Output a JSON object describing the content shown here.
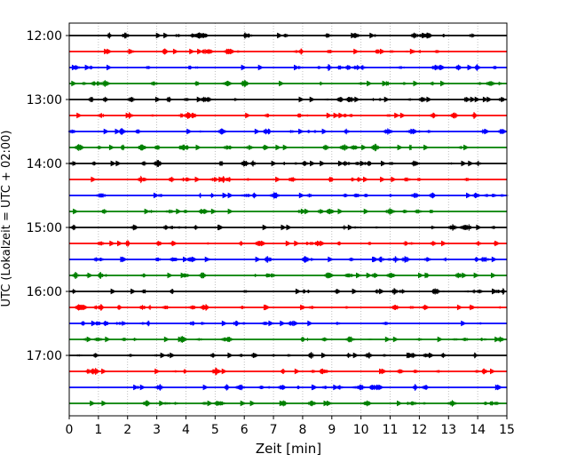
{
  "chart_data": {
    "type": "line",
    "title": "",
    "xlabel": "Zeit  [min]",
    "ylabel": "UTC (Lokalzeit = UTC + 02:00)",
    "xlim": [
      0,
      15
    ],
    "x_ticks": [
      "0",
      "1",
      "2",
      "3",
      "4",
      "5",
      "6",
      "7",
      "8",
      "9",
      "10",
      "11",
      "12",
      "13",
      "14",
      "15"
    ],
    "y_ticks": [
      {
        "label": "12:00",
        "row": 0
      },
      {
        "label": "13:00",
        "row": 4
      },
      {
        "label": "14:00",
        "row": 8
      },
      {
        "label": "15:00",
        "row": 12
      },
      {
        "label": "16:00",
        "row": 16
      },
      {
        "label": "17:00",
        "row": 20
      }
    ],
    "vertical_grid": true,
    "trace_interval_min": 15,
    "series": [
      {
        "start": "12:00",
        "color": "#000000"
      },
      {
        "start": "12:15",
        "color": "#ff0000"
      },
      {
        "start": "12:30",
        "color": "#0000ff"
      },
      {
        "start": "12:45",
        "color": "#008000"
      },
      {
        "start": "13:00",
        "color": "#000000"
      },
      {
        "start": "13:15",
        "color": "#ff0000"
      },
      {
        "start": "13:30",
        "color": "#0000ff"
      },
      {
        "start": "13:45",
        "color": "#008000"
      },
      {
        "start": "14:00",
        "color": "#000000"
      },
      {
        "start": "14:15",
        "color": "#ff0000"
      },
      {
        "start": "14:30",
        "color": "#0000ff"
      },
      {
        "start": "14:45",
        "color": "#008000"
      },
      {
        "start": "15:00",
        "color": "#000000"
      },
      {
        "start": "15:15",
        "color": "#ff0000"
      },
      {
        "start": "15:30",
        "color": "#0000ff"
      },
      {
        "start": "15:45",
        "color": "#008000"
      },
      {
        "start": "16:00",
        "color": "#000000"
      },
      {
        "start": "16:15",
        "color": "#ff0000"
      },
      {
        "start": "16:30",
        "color": "#0000ff"
      },
      {
        "start": "16:45",
        "color": "#008000"
      },
      {
        "start": "17:00",
        "color": "#000000"
      },
      {
        "start": "17:15",
        "color": "#ff0000"
      },
      {
        "start": "17:30",
        "color": "#0000ff"
      },
      {
        "start": "17:45",
        "color": "#008000"
      }
    ]
  }
}
